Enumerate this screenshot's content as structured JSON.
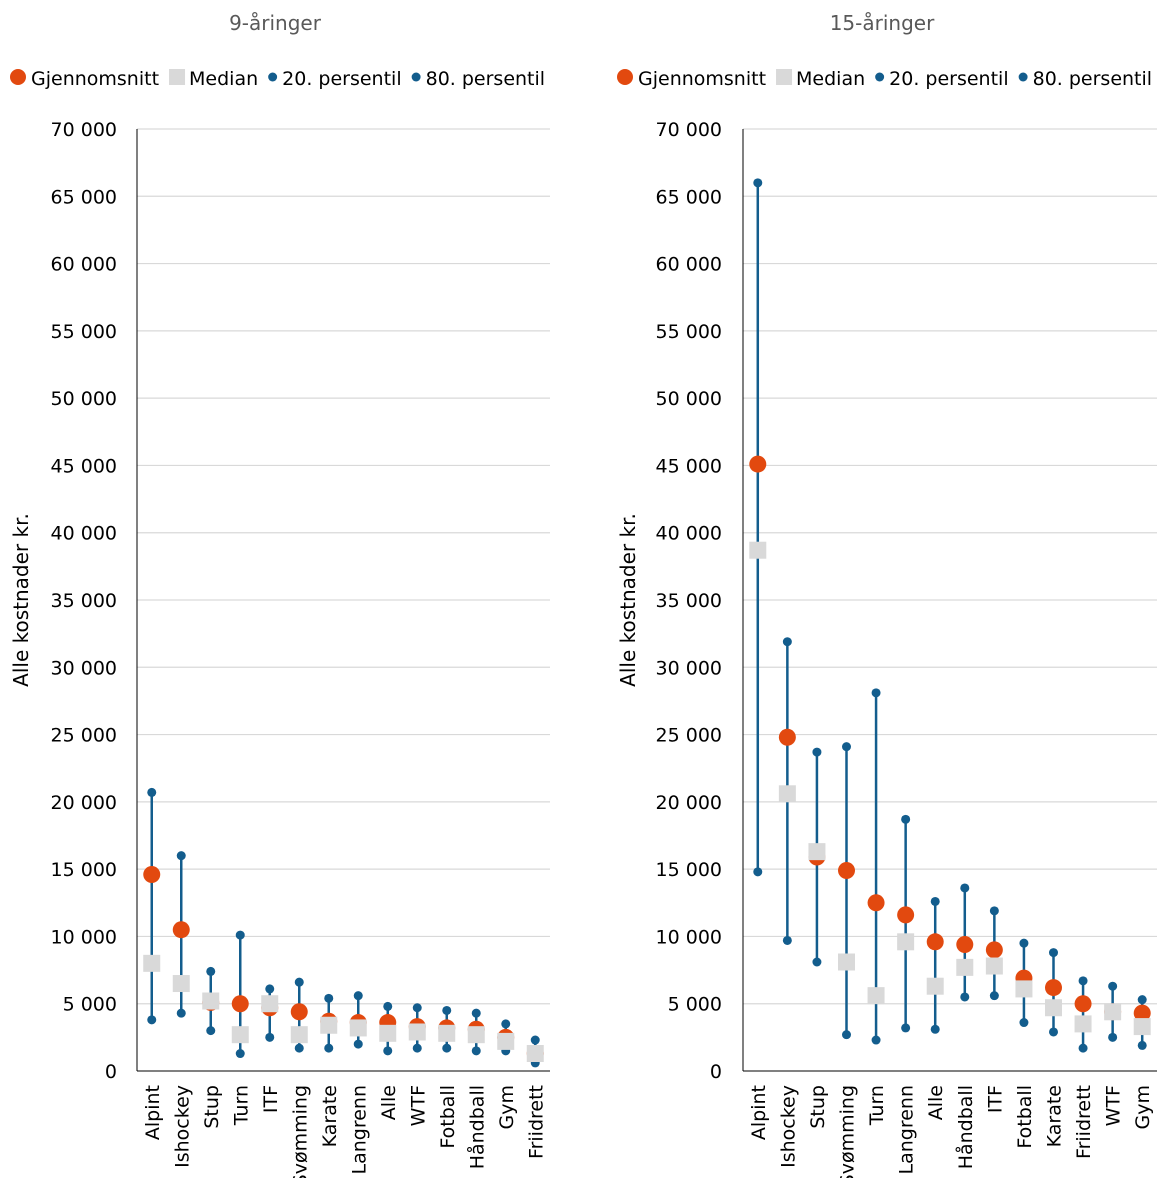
{
  "chart_data": [
    {
      "type": "scatter",
      "title": "9-åringer",
      "xlabel": "",
      "ylabel": "Alle kostnader kr.",
      "ylim": [
        0,
        70000
      ],
      "yticks": [
        0,
        5000,
        10000,
        15000,
        20000,
        25000,
        30000,
        35000,
        40000,
        45000,
        50000,
        55000,
        60000,
        65000,
        70000
      ],
      "ytick_labels": [
        "0",
        "5 000",
        "10 000",
        "15 000",
        "20 000",
        "25 000",
        "30 000",
        "35 000",
        "40 000",
        "45 000",
        "50 000",
        "55 000",
        "60 000",
        "65 000",
        "70 000"
      ],
      "grid": true,
      "legend_position": "top",
      "categories": [
        "Alpint",
        "Ishockey",
        "Stup",
        "Turn",
        "ITF",
        "Svømming",
        "Karate",
        "Langrenn",
        "Alle",
        "WTF",
        "Fotball",
        "Håndball",
        "Gym",
        "Friidrett"
      ],
      "series": [
        {
          "name": "Gjennomsnitt",
          "values": [
            14600,
            10500,
            5100,
            5000,
            4700,
            4400,
            3700,
            3600,
            3600,
            3300,
            3200,
            3100,
            2500,
            1300
          ]
        },
        {
          "name": "Median",
          "values": [
            8000,
            6500,
            5200,
            2700,
            5000,
            2700,
            3400,
            3200,
            2800,
            2900,
            2800,
            2700,
            2200,
            1300
          ]
        },
        {
          "name": "20. persentil",
          "values": [
            3800,
            4300,
            3000,
            1300,
            2500,
            1700,
            1700,
            2000,
            1500,
            1700,
            1700,
            1500,
            1500,
            600
          ]
        },
        {
          "name": "80. persentil",
          "values": [
            20700,
            16000,
            7400,
            10100,
            6100,
            6600,
            5400,
            5600,
            4800,
            4700,
            4500,
            4300,
            3500,
            2300
          ]
        }
      ]
    },
    {
      "type": "scatter",
      "title": "15-åringer",
      "xlabel": "",
      "ylabel": "Alle kostnader kr.",
      "ylim": [
        0,
        70000
      ],
      "yticks": [
        0,
        5000,
        10000,
        15000,
        20000,
        25000,
        30000,
        35000,
        40000,
        45000,
        50000,
        55000,
        60000,
        65000,
        70000
      ],
      "ytick_labels": [
        "0",
        "5 000",
        "10 000",
        "15 000",
        "20 000",
        "25 000",
        "30 000",
        "35 000",
        "40 000",
        "45 000",
        "50 000",
        "55 000",
        "60 000",
        "65 000",
        "70 000"
      ],
      "grid": true,
      "legend_position": "top",
      "categories": [
        "Alpint",
        "Ishockey",
        "Stup",
        "Svømming",
        "Turn",
        "Langrenn",
        "Alle",
        "Håndball",
        "ITF",
        "Fotball",
        "Karate",
        "Friidrett",
        "WTF",
        "Gym"
      ],
      "series": [
        {
          "name": "Gjennomsnitt",
          "values": [
            45100,
            24800,
            15900,
            14900,
            12500,
            11600,
            9600,
            9400,
            9000,
            6900,
            6200,
            5000,
            4400,
            4300
          ]
        },
        {
          "name": "Median",
          "values": [
            38700,
            20600,
            16300,
            8100,
            5600,
            9600,
            6300,
            7700,
            7800,
            6100,
            4700,
            3500,
            4400,
            3300
          ]
        },
        {
          "name": "20. persentil",
          "values": [
            14800,
            9700,
            8100,
            2700,
            2300,
            3200,
            3100,
            5500,
            5600,
            3600,
            2900,
            1700,
            2500,
            1900
          ]
        },
        {
          "name": "80. persentil",
          "values": [
            66000,
            31900,
            23700,
            24100,
            28100,
            18700,
            12600,
            13600,
            11900,
            9500,
            8800,
            6700,
            6300,
            5300
          ]
        }
      ]
    }
  ],
  "colors": {
    "mean": "#e2490f",
    "median": "#d9d9d9",
    "p20": "#135d8d",
    "p80": "#135d8d",
    "range_line": "#135d8d",
    "grid": "#d9d9d9",
    "axis": "#000000",
    "title": "#595959"
  },
  "marker_shapes": [
    "circle",
    "square",
    "circle",
    "circle"
  ]
}
